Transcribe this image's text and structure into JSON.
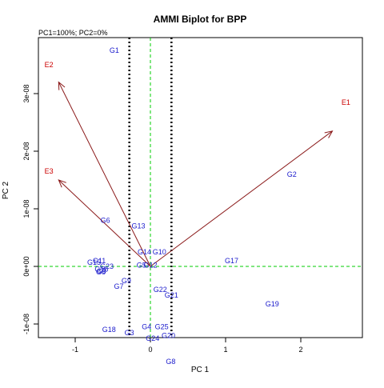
{
  "chart_data": {
    "type": "scatter",
    "title": "AMMI Biplot for BPP",
    "subtitle": "PC1=100%; PC2=0%",
    "xlabel": "PC 1",
    "ylabel": "PC 2",
    "xlim": [
      -1.5,
      2.8
    ],
    "ylim": [
      -1.25e-08,
      4.2e-08
    ],
    "x_ticks": [
      -1,
      0,
      1,
      2
    ],
    "x_tick_labels": [
      "-1",
      "0",
      "1",
      "2"
    ],
    "y_ticks": [
      -1e-08,
      0,
      1e-08,
      2e-08,
      3e-08
    ],
    "y_tick_labels": [
      "-1e-08",
      "0e+00",
      "1e-08",
      "2e-08",
      "3e-08"
    ],
    "reference_lines": {
      "horizontal_y": 0,
      "vertical_x": 0,
      "dotted_x": [
        -0.28,
        0.28
      ]
    },
    "colors": {
      "genotypes": "#1a1acc",
      "environments": "#cc0000",
      "arrows": "#8b1a1a",
      "reference": "#00cc00",
      "dotted": "#000000"
    },
    "environments": [
      {
        "label": "E1",
        "x": 2.6,
        "y": 2.85e-08,
        "arrow_x": 2.42,
        "arrow_y": 2.35e-08
      },
      {
        "label": "E2",
        "x": -1.35,
        "y": 3.5e-08,
        "arrow_x": -1.22,
        "arrow_y": 3.2e-08
      },
      {
        "label": "E3",
        "x": -1.35,
        "y": 1.65e-08,
        "arrow_x": -1.22,
        "arrow_y": 1.5e-08
      }
    ],
    "genotypes": [
      {
        "label": "G1",
        "x": -0.48,
        "y": 3.75e-08
      },
      {
        "label": "G2",
        "x": 1.88,
        "y": 1.6e-08
      },
      {
        "label": "G6",
        "x": -0.6,
        "y": 8e-09
      },
      {
        "label": "G13",
        "x": -0.16,
        "y": 7e-09
      },
      {
        "label": "G14",
        "x": -0.08,
        "y": 2.5e-09
      },
      {
        "label": "G10",
        "x": 0.12,
        "y": 2.5e-09
      },
      {
        "label": "G17",
        "x": 1.08,
        "y": 1e-09
      },
      {
        "label": "G5",
        "x": -0.12,
        "y": 2e-10
      },
      {
        "label": "G12",
        "x": 0.0,
        "y": 2e-10
      },
      {
        "label": "G15",
        "x": -0.75,
        "y": 7e-10
      },
      {
        "label": "G11",
        "x": -0.68,
        "y": 1e-09
      },
      {
        "label": "G23",
        "x": -0.58,
        "y": 0.0
      },
      {
        "label": "G16",
        "x": -0.65,
        "y": -5e-10
      },
      {
        "label": "G9",
        "x": -0.65,
        "y": -8e-10
      },
      {
        "label": "G8",
        "x": -0.66,
        "y": -1e-09
      },
      {
        "label": "G7",
        "x": -0.42,
        "y": -3.5e-09
      },
      {
        "label": "G9",
        "x": -0.32,
        "y": -2.5e-09
      },
      {
        "label": "G22",
        "x": 0.13,
        "y": -4e-09
      },
      {
        "label": "G21",
        "x": 0.28,
        "y": -5e-09
      },
      {
        "label": "G19",
        "x": 1.62,
        "y": -6.5e-09
      },
      {
        "label": "G18",
        "x": -0.55,
        "y": -1.1e-08
      },
      {
        "label": "G3",
        "x": -0.28,
        "y": -1.15e-08
      },
      {
        "label": "G4",
        "x": -0.05,
        "y": -1.05e-08
      },
      {
        "label": "G25",
        "x": 0.15,
        "y": -1.05e-08
      },
      {
        "label": "G24",
        "x": 0.03,
        "y": -1.25e-08
      },
      {
        "label": "G20",
        "x": 0.24,
        "y": -1.2e-08
      },
      {
        "label": "G8",
        "x": 0.27,
        "y": -1.65e-08
      }
    ]
  }
}
